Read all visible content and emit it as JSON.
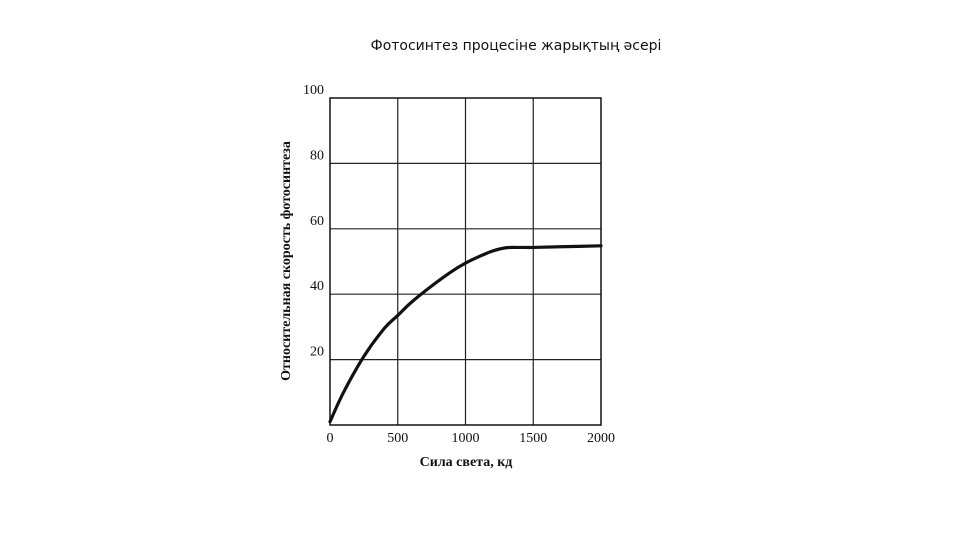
{
  "slide": {
    "title": "Фотосинтез процесіне жарықтың әсері"
  },
  "chart_data": {
    "type": "line",
    "title": "",
    "xlabel": "Сила света, кд",
    "ylabel": "Относительная скорость фотосинтеза",
    "xlim": [
      0,
      2000
    ],
    "ylim": [
      0,
      100
    ],
    "x_ticks": [
      0,
      500,
      1000,
      1500,
      2000
    ],
    "y_ticks": [
      20,
      40,
      60,
      80,
      100
    ],
    "grid": true,
    "legend": "none",
    "series": [
      {
        "color": "#111111",
        "x": [
          0,
          100,
          250,
          400,
          500,
          600,
          750,
          900,
          1000,
          1100,
          1200,
          1300,
          1400,
          1500,
          1700,
          2000
        ],
        "y": [
          1,
          10,
          21,
          29.5,
          33.5,
          37.5,
          42.5,
          47,
          49.5,
          51.5,
          53.2,
          54.2,
          54.3,
          54.3,
          54.5,
          54.8
        ]
      }
    ]
  }
}
